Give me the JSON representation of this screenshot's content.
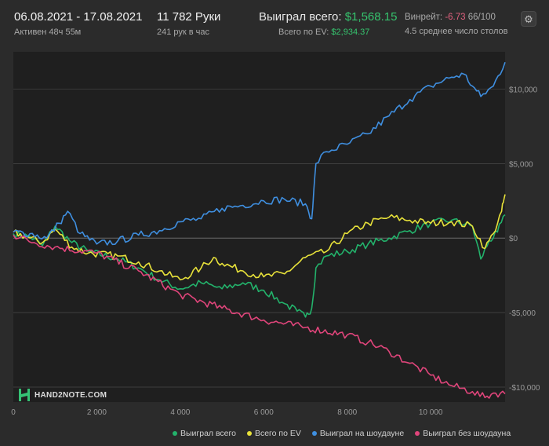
{
  "header": {
    "date_range": "06.08.2021 - 17.08.2021",
    "active": "Активен 48ч 55м",
    "hands": "11 782 Руки",
    "hands_per_hour": "241 рук в час",
    "won_total_label": "Выиграл всего:",
    "won_total_value": "$1,568.15",
    "ev_label": "Всего по EV:",
    "ev_value": "$2,934.37",
    "winrate_label": "Винрейт:",
    "winrate_value": "-6.73",
    "winrate_suffix": "66/100",
    "tables": "4.5 среднее число столов"
  },
  "logo": {
    "text": "HAND2NOTE.COM"
  },
  "colors": {
    "background": "#2b2b2b",
    "plot_bg": "#1f1f1f",
    "grid": "#4a4a4a",
    "won": "#23b26b",
    "ev": "#e8e23a",
    "showdown": "#3f8fe0",
    "nonshowdown": "#e0457b"
  },
  "chart_data": {
    "type": "line",
    "title": "",
    "xlabel": "",
    "ylabel": "",
    "xlim": [
      0,
      11782
    ],
    "ylim": [
      -11000,
      12500
    ],
    "x_ticks": [
      0,
      2000,
      4000,
      6000,
      8000,
      10000
    ],
    "x_tick_labels": [
      "0",
      "2 000",
      "4 000",
      "6 000",
      "8 000",
      "10 000"
    ],
    "y_ticks": [
      10000,
      5000,
      0,
      -5000,
      -10000
    ],
    "y_tick_labels": [
      "$10,000",
      "$5,000",
      "$0",
      "-$5,000",
      "-$10,000"
    ],
    "grid": true,
    "legend_position": "bottom-right",
    "series": [
      {
        "name": "Выиграл всего",
        "color": "#23b26b",
        "points": [
          [
            0,
            300
          ],
          [
            400,
            100
          ],
          [
            700,
            -500
          ],
          [
            1000,
            800
          ],
          [
            1400,
            -300
          ],
          [
            1800,
            -900
          ],
          [
            2500,
            -1400
          ],
          [
            3000,
            -2000
          ],
          [
            3500,
            -2800
          ],
          [
            4000,
            -3400
          ],
          [
            4500,
            -3000
          ],
          [
            5000,
            -3400
          ],
          [
            5500,
            -3000
          ],
          [
            6000,
            -3500
          ],
          [
            6500,
            -4400
          ],
          [
            6800,
            -4900
          ],
          [
            7000,
            -5300
          ],
          [
            7150,
            -4700
          ],
          [
            7250,
            -2000
          ],
          [
            7500,
            -1200
          ],
          [
            8000,
            -900
          ],
          [
            8500,
            -400
          ],
          [
            9000,
            0
          ],
          [
            9500,
            500
          ],
          [
            10000,
            1000
          ],
          [
            10500,
            1200
          ],
          [
            11000,
            800
          ],
          [
            11200,
            -1400
          ],
          [
            11400,
            -200
          ],
          [
            11600,
            400
          ],
          [
            11782,
            1568
          ]
        ]
      },
      {
        "name": "Всего по EV",
        "color": "#e8e23a",
        "points": [
          [
            0,
            400
          ],
          [
            400,
            0
          ],
          [
            700,
            -300
          ],
          [
            1000,
            600
          ],
          [
            1400,
            -600
          ],
          [
            1800,
            -1000
          ],
          [
            2500,
            -1200
          ],
          [
            3000,
            -1600
          ],
          [
            3500,
            -2200
          ],
          [
            4000,
            -2800
          ],
          [
            4500,
            -2000
          ],
          [
            4800,
            -1300
          ],
          [
            5000,
            -1700
          ],
          [
            5500,
            -2200
          ],
          [
            6000,
            -2600
          ],
          [
            6500,
            -2400
          ],
          [
            7000,
            -1300
          ],
          [
            7500,
            -900
          ],
          [
            8000,
            300
          ],
          [
            8500,
            1000
          ],
          [
            9000,
            1400
          ],
          [
            9500,
            1200
          ],
          [
            10000,
            1000
          ],
          [
            10500,
            1100
          ],
          [
            11000,
            800
          ],
          [
            11300,
            -700
          ],
          [
            11500,
            300
          ],
          [
            11700,
            1800
          ],
          [
            11782,
            2934
          ]
        ]
      },
      {
        "name": "Выиграл на шоудауне",
        "color": "#3f8fe0",
        "points": [
          [
            0,
            400
          ],
          [
            400,
            300
          ],
          [
            800,
            0
          ],
          [
            1100,
            1000
          ],
          [
            1300,
            1800
          ],
          [
            1600,
            300
          ],
          [
            2000,
            -400
          ],
          [
            2500,
            -200
          ],
          [
            3000,
            200
          ],
          [
            3500,
            500
          ],
          [
            4000,
            1100
          ],
          [
            4500,
            1300
          ],
          [
            5000,
            2000
          ],
          [
            5500,
            2200
          ],
          [
            6000,
            2500
          ],
          [
            6500,
            2600
          ],
          [
            7000,
            2300
          ],
          [
            7150,
            1300
          ],
          [
            7250,
            5000
          ],
          [
            7500,
            5800
          ],
          [
            8000,
            6300
          ],
          [
            8500,
            7000
          ],
          [
            9000,
            8200
          ],
          [
            9500,
            9300
          ],
          [
            10000,
            10200
          ],
          [
            10500,
            10800
          ],
          [
            10800,
            11000
          ],
          [
            11000,
            10200
          ],
          [
            11200,
            9500
          ],
          [
            11500,
            10200
          ],
          [
            11782,
            11800
          ]
        ]
      },
      {
        "name": "Выиграл без шоудауна",
        "color": "#e0457b",
        "points": [
          [
            0,
            200
          ],
          [
            500,
            -300
          ],
          [
            1000,
            -600
          ],
          [
            2000,
            -1000
          ],
          [
            3000,
            -2200
          ],
          [
            4000,
            -3800
          ],
          [
            5000,
            -4700
          ],
          [
            6000,
            -5500
          ],
          [
            7000,
            -6000
          ],
          [
            8000,
            -6500
          ],
          [
            8500,
            -7000
          ],
          [
            9000,
            -7600
          ],
          [
            9500,
            -8400
          ],
          [
            10000,
            -9200
          ],
          [
            10500,
            -9900
          ],
          [
            11000,
            -10300
          ],
          [
            11300,
            -10700
          ],
          [
            11500,
            -10400
          ],
          [
            11782,
            -10450
          ]
        ]
      }
    ]
  }
}
